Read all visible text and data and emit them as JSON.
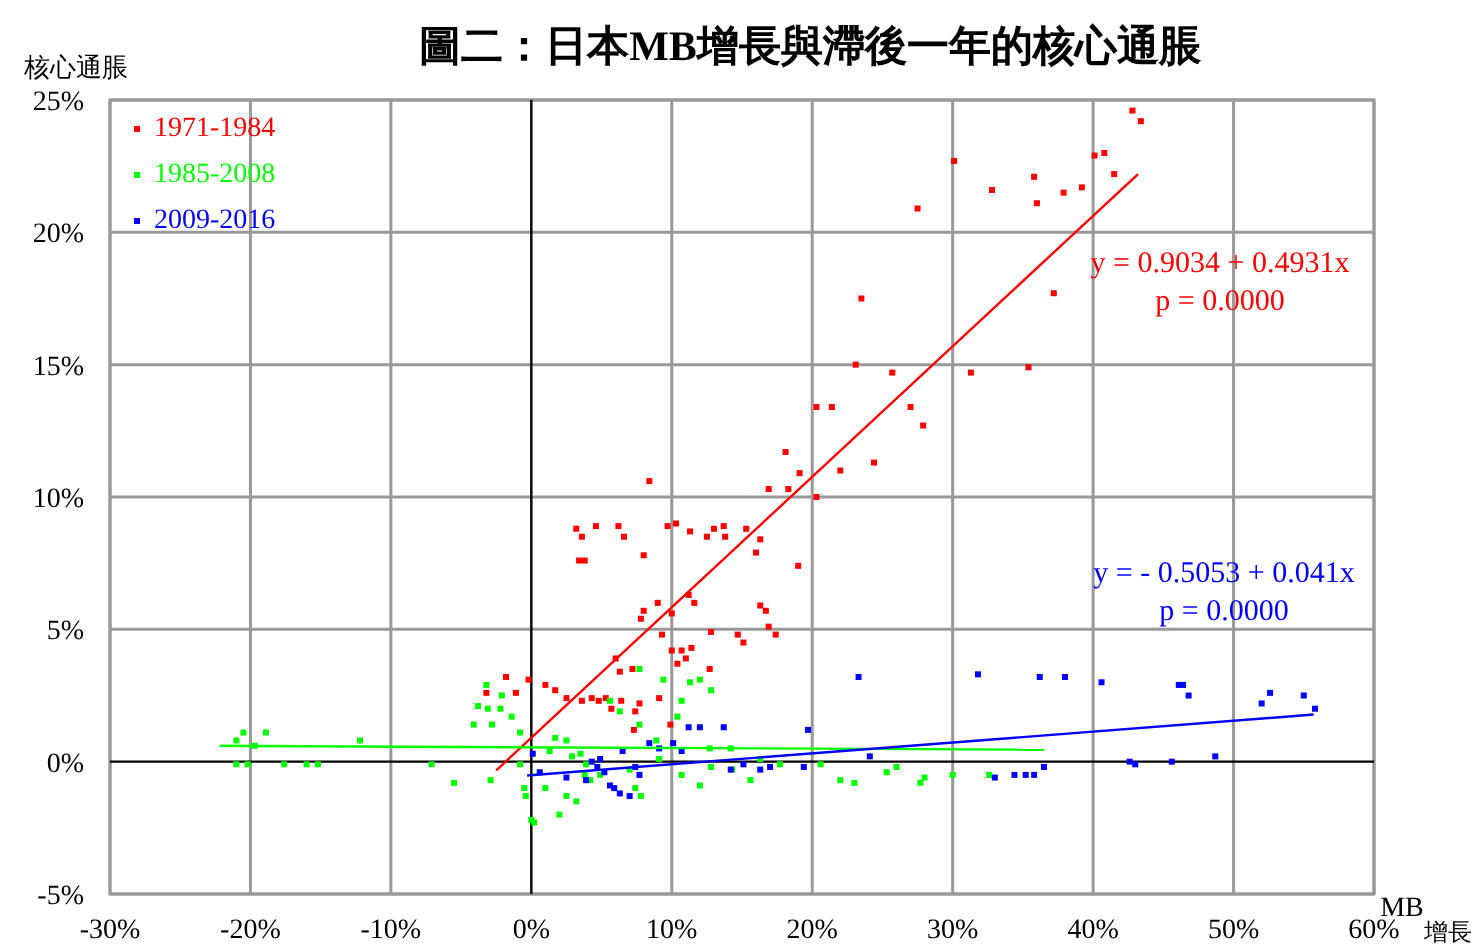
{
  "chart_data": {
    "type": "scatter",
    "title": "圖二：日本MB增長與滯後一年的核心通脹",
    "ylabel": "核心通脹",
    "xlabel": "MB$_{增長}$",
    "xlim": [
      -30,
      60
    ],
    "ylim": [
      -5,
      25
    ],
    "xticks": [
      {
        "value": -30,
        "label": "-30%"
      },
      {
        "value": -20,
        "label": "-20%"
      },
      {
        "value": -10,
        "label": "-10%"
      },
      {
        "value": 0,
        "label": "0%"
      },
      {
        "value": 10,
        "label": "10%"
      },
      {
        "value": 20,
        "label": "20%"
      },
      {
        "value": 30,
        "label": "30%"
      },
      {
        "value": 40,
        "label": "40%"
      },
      {
        "value": 50,
        "label": "50%"
      },
      {
        "value": 60,
        "label": "60%"
      }
    ],
    "yticks": [
      {
        "value": -5,
        "label": "-5%"
      },
      {
        "value": 0,
        "label": "0%"
      },
      {
        "value": 5,
        "label": "5%"
      },
      {
        "value": 10,
        "label": "10%"
      },
      {
        "value": 15,
        "label": "15%"
      },
      {
        "value": 20,
        "label": "20%"
      },
      {
        "value": 25,
        "label": "25%"
      }
    ],
    "grid": true,
    "legend": "top left",
    "annotations": [
      "y = 0.9034 + 0.4931x",
      "p = 0.0000",
      "y = - 0.5053 + 0.041x",
      "p = 0.0000"
    ],
    "series": [
      {
        "name": "1971-1984",
        "color": "#ff0000",
        "marker": "square",
        "x": [
          42.8,
          43.4,
          30.1,
          32.8,
          35.8,
          36.0,
          37.9,
          39.2,
          40.1,
          40.8,
          41.5,
          27.5,
          37.2,
          23.5,
          31.3,
          23.1,
          25.7,
          35.4,
          27.0,
          27.9,
          20.3,
          21.4,
          18.1,
          22.0,
          24.4,
          19.1,
          18.3,
          16.9,
          20.3,
          3.2,
          3.6,
          4.6,
          3.4,
          3.8,
          6.2,
          8.4,
          6.6,
          8.0,
          9.7,
          10.3,
          11.3,
          12.5,
          13.0,
          13.7,
          13.8,
          16.0,
          15.3,
          16.3,
          19.0,
          8.0,
          7.8,
          9.0,
          10.0,
          11.2,
          11.6,
          12.8,
          15.1,
          14.7,
          16.3,
          16.9,
          17.4,
          16.7,
          9.3,
          10.0,
          10.7,
          11.0,
          6.3,
          6.0,
          7.2,
          10.4,
          12.7,
          11.4,
          -0.2,
          -1.8,
          1.0,
          1.7,
          3.6,
          4.3,
          5.3,
          6.4,
          7.7,
          9.1,
          -1.1,
          -3.2,
          4.8,
          2.5,
          5.7,
          7.4,
          9.9,
          7.3
        ],
        "values": [
          24.6,
          24.2,
          22.7,
          21.6,
          22.1,
          21.1,
          21.5,
          21.7,
          22.9,
          23.0,
          22.2,
          20.9,
          17.7,
          17.5,
          14.7,
          15.0,
          14.7,
          14.9,
          13.4,
          12.7,
          13.4,
          13.4,
          11.7,
          11.0,
          11.3,
          10.9,
          10.3,
          10.3,
          10.0,
          8.8,
          8.5,
          8.9,
          7.6,
          7.6,
          8.9,
          10.6,
          8.5,
          7.8,
          8.9,
          9.0,
          8.7,
          8.5,
          8.8,
          8.9,
          8.5,
          7.9,
          8.8,
          8.4,
          7.4,
          5.7,
          5.4,
          6.0,
          5.6,
          6.3,
          6.0,
          4.9,
          4.5,
          4.8,
          5.9,
          5.1,
          4.8,
          5.7,
          4.8,
          4.2,
          4.2,
          3.9,
          3.4,
          3.9,
          3.5,
          3.7,
          3.5,
          4.3,
          3.1,
          3.2,
          2.9,
          2.7,
          2.3,
          2.4,
          2.4,
          2.3,
          2.2,
          2.4,
          2.6,
          2.6,
          2.3,
          2.4,
          2.0,
          1.9,
          1.4,
          1.2
        ]
      },
      {
        "name": "1985-2008",
        "color": "#00ff00",
        "marker": "square",
        "x": [
          -20.5,
          -21.0,
          -19.7,
          -18.9,
          -12.2,
          -21.0,
          -20.2,
          -17.6,
          -16.0,
          -15.2,
          -7.1,
          -5.5,
          -4.1,
          -3.8,
          -3.1,
          -2.2,
          -2.8,
          -1.4,
          -0.8,
          -2.1,
          -3.2,
          -0.8,
          -0.5,
          -0.4,
          0,
          0.2,
          1.0,
          2.0,
          2.5,
          3.2,
          1.7,
          2.5,
          1.3,
          2.9,
          3.5,
          3.9,
          4.9,
          3.8,
          5.6,
          7.7,
          9.4,
          11.3,
          12,
          12.8,
          10.7,
          10.4,
          7.7,
          6.3,
          8.9,
          9.1,
          10.7,
          12.0,
          12.8,
          14.3,
          15.6,
          12.7,
          7.0,
          7.8,
          7.4,
          4.2,
          14.2,
          16.3,
          17.7,
          20.6,
          22.0,
          23.0,
          25.3,
          26,
          27.7,
          28,
          30,
          32.6,
          -2.9
        ],
        "values": [
          1.1,
          0.8,
          0.6,
          1.1,
          0.8,
          -0.1,
          -0.1,
          -0.1,
          -0.1,
          -0.1,
          -0.1,
          -0.8,
          1.4,
          2.1,
          2.0,
          2.0,
          1.4,
          1.7,
          1.1,
          2.5,
          2.9,
          -0.1,
          -1.0,
          -1.3,
          -2.2,
          -2.3,
          -1.0,
          -2.0,
          -1.3,
          -1.5,
          0.9,
          0.8,
          0.4,
          0.2,
          0.3,
          -0.1,
          -0.5,
          -0.5,
          2.3,
          3.5,
          3.1,
          3.0,
          3.1,
          2.7,
          2.3,
          1.7,
          1.4,
          1.9,
          0.8,
          0.1,
          -0.5,
          -0.9,
          -0.2,
          -0.3,
          -0.7,
          0.5,
          -0.3,
          -1.3,
          -1.0,
          -0.7,
          0.5,
          0.1,
          -0.1,
          -0.1,
          -0.7,
          -0.8,
          -0.4,
          -0.2,
          -0.8,
          -0.6,
          -0.5,
          -0.5,
          -0.7
        ]
      },
      {
        "name": "2009-2016",
        "color": "#0000ff",
        "marker": "square",
        "x": [
          0.1,
          0.6,
          2.5,
          3.9,
          4.7,
          4.9,
          5.6,
          5.9,
          6.3,
          7.0,
          7.7,
          8.4,
          9.1,
          10.1,
          4.3,
          5.2,
          6.5,
          7.4,
          11.2,
          12,
          10.7,
          13.7,
          14.2,
          15.1,
          16.3,
          17.0,
          19.7,
          19.4,
          23.3,
          24.1,
          31.8,
          33,
          34.4,
          35.2,
          36.2,
          35.8,
          36.5,
          38.0,
          40.6,
          42.6,
          43,
          45.6,
          46.1,
          46.4,
          46.8,
          48.7,
          52,
          52.6,
          55,
          55.8
        ],
        "values": [
          0.3,
          -0.4,
          -0.6,
          -0.7,
          -0.2,
          0.1,
          -0.9,
          -1.0,
          -1.2,
          -1.3,
          -0.5,
          0.7,
          0.5,
          0.7,
          0,
          -0.4,
          0.4,
          -0.2,
          1.3,
          1.3,
          0.4,
          1.3,
          -0.3,
          -0.1,
          -0.3,
          -0.2,
          1.2,
          -0.2,
          3.2,
          0.2,
          3.3,
          -0.6,
          -0.5,
          -0.5,
          3.2,
          -0.5,
          -0.2,
          3.2,
          3.0,
          0,
          -0.1,
          0,
          2.9,
          2.9,
          2.5,
          0.2,
          2.2,
          2.6,
          2.5,
          2.0
        ]
      },
      {
        "type": "line",
        "color": "#ff0000",
        "x": [
          -2.5,
          43.2
        ],
        "values": [
          -0.33,
          22.2
        ]
      },
      {
        "type": "line",
        "color": "#00ff00",
        "x": [
          -22.2,
          36.5
        ],
        "values": [
          0.6,
          0.45
        ]
      },
      {
        "type": "line",
        "color": "#0000ff",
        "x": [
          -0.3,
          55.7
        ],
        "values": [
          -0.52,
          1.78
        ]
      }
    ]
  }
}
